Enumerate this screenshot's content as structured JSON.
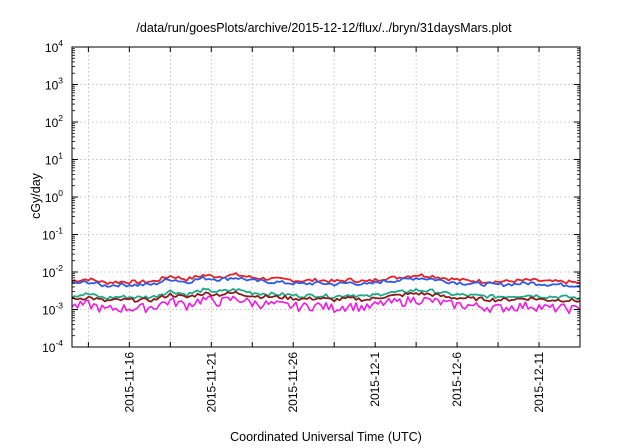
{
  "chart_data": {
    "type": "line",
    "title": "/data/run/goesPlots/archive/2015-12-12/flux/../bryn/31daysMars.plot",
    "xlabel": "Coordinated Universal Time (UTC)",
    "ylabel": "cGy/day",
    "yscale": "log",
    "ylim": [
      0.0001,
      10000
    ],
    "xlim_days": [
      0,
      31
    ],
    "grid": true,
    "legend": "none",
    "y_ticks": [
      {
        "value": 10000,
        "base": "10",
        "exp": "4"
      },
      {
        "value": 1000,
        "base": "10",
        "exp": "3"
      },
      {
        "value": 100,
        "base": "10",
        "exp": "2"
      },
      {
        "value": 10,
        "base": "10",
        "exp": "1"
      },
      {
        "value": 1,
        "base": "10",
        "exp": "0"
      },
      {
        "value": 0.1,
        "base": "10",
        "exp": "-1"
      },
      {
        "value": 0.01,
        "base": "10",
        "exp": "-2"
      },
      {
        "value": 0.001,
        "base": "10",
        "exp": "-3"
      },
      {
        "value": 0.0001,
        "base": "10",
        "exp": "-4"
      }
    ],
    "x_ticks": [
      {
        "day": 3.5,
        "label": "2015-11-16"
      },
      {
        "day": 8.5,
        "label": "2015-11-21"
      },
      {
        "day": 13.5,
        "label": "2015-11-26"
      },
      {
        "day": 18.5,
        "label": "2015-12-1"
      },
      {
        "day": 23.5,
        "label": "2015-12-6"
      },
      {
        "day": 28.5,
        "label": "2015-12-11"
      }
    ],
    "series_x_days": [
      0,
      1,
      2,
      3,
      4,
      5,
      6,
      7,
      8,
      9,
      10,
      11,
      12,
      13,
      14,
      15,
      16,
      17,
      18,
      19,
      20,
      21,
      22,
      23,
      24,
      25,
      26,
      27,
      28,
      29,
      30,
      31
    ],
    "series": [
      {
        "name": "red",
        "color": "#e8202a",
        "values": [
          0.0058,
          0.0065,
          0.0052,
          0.0055,
          0.0054,
          0.0056,
          0.0078,
          0.0064,
          0.0082,
          0.0076,
          0.0085,
          0.0071,
          0.0066,
          0.0063,
          0.0058,
          0.0061,
          0.0056,
          0.0062,
          0.0055,
          0.0068,
          0.0072,
          0.0084,
          0.0078,
          0.0066,
          0.006,
          0.0057,
          0.0055,
          0.0058,
          0.0061,
          0.0056,
          0.0055,
          0.0052
        ]
      },
      {
        "name": "blue",
        "color": "#2d5be3",
        "values": [
          0.0049,
          0.0054,
          0.0043,
          0.0046,
          0.0045,
          0.0047,
          0.0065,
          0.0053,
          0.0069,
          0.0064,
          0.0071,
          0.0059,
          0.0055,
          0.0052,
          0.0048,
          0.0051,
          0.0047,
          0.0052,
          0.0046,
          0.0057,
          0.006,
          0.007,
          0.0065,
          0.0055,
          0.005,
          0.0048,
          0.0046,
          0.0048,
          0.0051,
          0.0047,
          0.0046,
          0.0043
        ]
      },
      {
        "name": "teal",
        "color": "#1fa98a",
        "values": [
          0.0023,
          0.0026,
          0.002,
          0.0022,
          0.0021,
          0.0022,
          0.0031,
          0.0025,
          0.0033,
          0.003,
          0.0034,
          0.0028,
          0.0026,
          0.0025,
          0.0023,
          0.0024,
          0.0022,
          0.0025,
          0.0022,
          0.0027,
          0.0029,
          0.0033,
          0.0031,
          0.0026,
          0.0024,
          0.0023,
          0.0022,
          0.0023,
          0.0024,
          0.0022,
          0.0022,
          0.002
        ]
      },
      {
        "name": "dark-red",
        "color": "#8b1a1a",
        "values": [
          0.0019,
          0.0021,
          0.0017,
          0.0018,
          0.0018,
          0.0018,
          0.0025,
          0.0021,
          0.0027,
          0.0025,
          0.0028,
          0.0023,
          0.0022,
          0.0021,
          0.0019,
          0.002,
          0.0018,
          0.002,
          0.0018,
          0.0022,
          0.0024,
          0.0027,
          0.0025,
          0.0021,
          0.002,
          0.0019,
          0.0018,
          0.0019,
          0.002,
          0.0018,
          0.0018,
          0.0017
        ]
      },
      {
        "name": "magenta",
        "color": "#f01ae0",
        "values": [
          0.0012,
          0.0014,
          0.001,
          0.0011,
          0.0011,
          0.0012,
          0.0017,
          0.0013,
          0.0019,
          0.0016,
          0.002,
          0.0015,
          0.0014,
          0.0013,
          0.0012,
          0.0013,
          0.0011,
          0.0013,
          0.0011,
          0.0015,
          0.0016,
          0.0019,
          0.0017,
          0.0014,
          0.0013,
          0.0012,
          0.0011,
          0.0012,
          0.0013,
          0.0011,
          0.0011,
          0.001
        ]
      }
    ]
  }
}
